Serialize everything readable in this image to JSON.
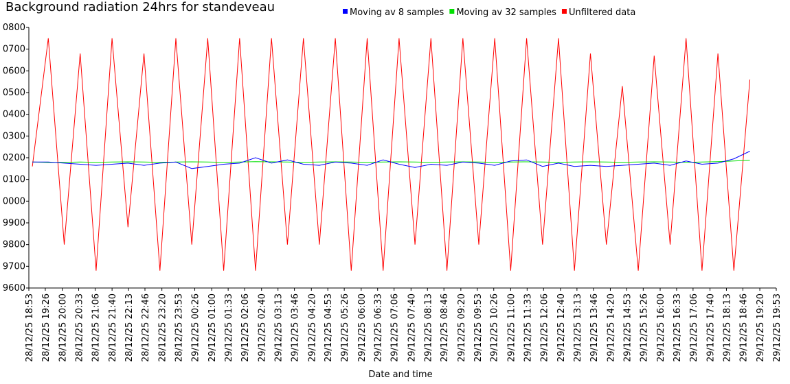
{
  "chart_data": {
    "type": "line",
    "title": "Background radiation 24hrs for standeveau",
    "xlabel": "Date and time",
    "ylabel": "",
    "ylim": [
      9600,
      10800
    ],
    "grid": false,
    "legend": "top",
    "y_ticks": [
      "9600",
      "9700",
      "9800",
      "9900",
      "0000",
      "0100",
      "0200",
      "0300",
      "0400",
      "0500",
      "0600",
      "0700",
      "0800"
    ],
    "x_ticks": [
      "28/12/25 18:53",
      "28/12/25 19:26",
      "28/12/25 20:00",
      "28/12/25 20:33",
      "28/12/25 21:06",
      "28/12/25 21:40",
      "28/12/25 22:13",
      "28/12/25 22:46",
      "28/12/25 23:20",
      "28/12/25 23:53",
      "29/12/25 00:26",
      "29/12/25 01:00",
      "29/12/25 01:33",
      "29/12/25 02:06",
      "29/12/25 02:40",
      "29/12/25 03:13",
      "29/12/25 03:46",
      "29/12/25 04:20",
      "29/12/25 04:53",
      "29/12/25 05:26",
      "29/12/25 06:00",
      "29/12/25 06:33",
      "29/12/25 07:06",
      "29/12/25 07:40",
      "29/12/25 08:13",
      "29/12/25 08:46",
      "29/12/25 09:20",
      "29/12/25 09:53",
      "29/12/25 10:26",
      "29/12/25 11:00",
      "29/12/25 11:33",
      "29/12/25 12:06",
      "29/12/25 12:40",
      "29/12/25 13:13",
      "29/12/25 13:46",
      "29/12/25 14:20",
      "29/12/25 14:53",
      "29/12/25 15:26",
      "29/12/25 16:00",
      "29/12/25 16:33",
      "29/12/25 17:06",
      "29/12/25 17:40",
      "29/12/25 18:13",
      "29/12/25 18:46",
      "29/12/25 19:20",
      "29/12/25 19:53"
    ],
    "x_range": [
      "28/12/25 18:53",
      "29/12/25 19:53"
    ],
    "x_start": "28/12/25 19:00",
    "x_end": "29/12/25 19:00",
    "series": [
      {
        "name": "Moving av 8 samples",
        "color": "#0000ff",
        "values": [
          10180,
          10180,
          10175,
          10170,
          10165,
          10170,
          10175,
          10165,
          10175,
          10180,
          10150,
          10160,
          10170,
          10175,
          10200,
          10175,
          10190,
          10170,
          10165,
          10180,
          10175,
          10165,
          10190,
          10170,
          10155,
          10170,
          10165,
          10180,
          10175,
          10165,
          10185,
          10190,
          10160,
          10175,
          10160,
          10165,
          10160,
          10165,
          10170,
          10175,
          10165,
          10185,
          10170,
          10175,
          10195,
          10230
        ]
      },
      {
        "name": "Moving av 32 samples",
        "color": "#00e000",
        "values": [
          10180,
          10178,
          10179,
          10180,
          10179,
          10180,
          10181,
          10180,
          10179,
          10180,
          10181,
          10180,
          10179,
          10180,
          10182,
          10181,
          10180,
          10179,
          10180,
          10181,
          10180,
          10179,
          10180,
          10181,
          10180,
          10179,
          10180,
          10181,
          10180,
          10179,
          10180,
          10181,
          10180,
          10179,
          10180,
          10181,
          10180,
          10179,
          10180,
          10181,
          10180,
          10179,
          10180,
          10182,
          10185,
          10188
        ]
      },
      {
        "name": "Unfiltered data",
        "color": "#ff0000",
        "values": [
          10160,
          10750,
          9800,
          10680,
          9680,
          10750,
          9880,
          10680,
          9680,
          10750,
          9800,
          10750,
          9680,
          10750,
          9680,
          10750,
          9800,
          10750,
          9800,
          10750,
          9680,
          10750,
          9680,
          10750,
          9800,
          10750,
          9680,
          10750,
          9800,
          10750,
          9680,
          10750,
          9800,
          10750,
          9680,
          10680,
          9800,
          10530,
          9680,
          10670,
          9800,
          10750,
          9680,
          10680,
          9680,
          10560
        ]
      }
    ]
  }
}
